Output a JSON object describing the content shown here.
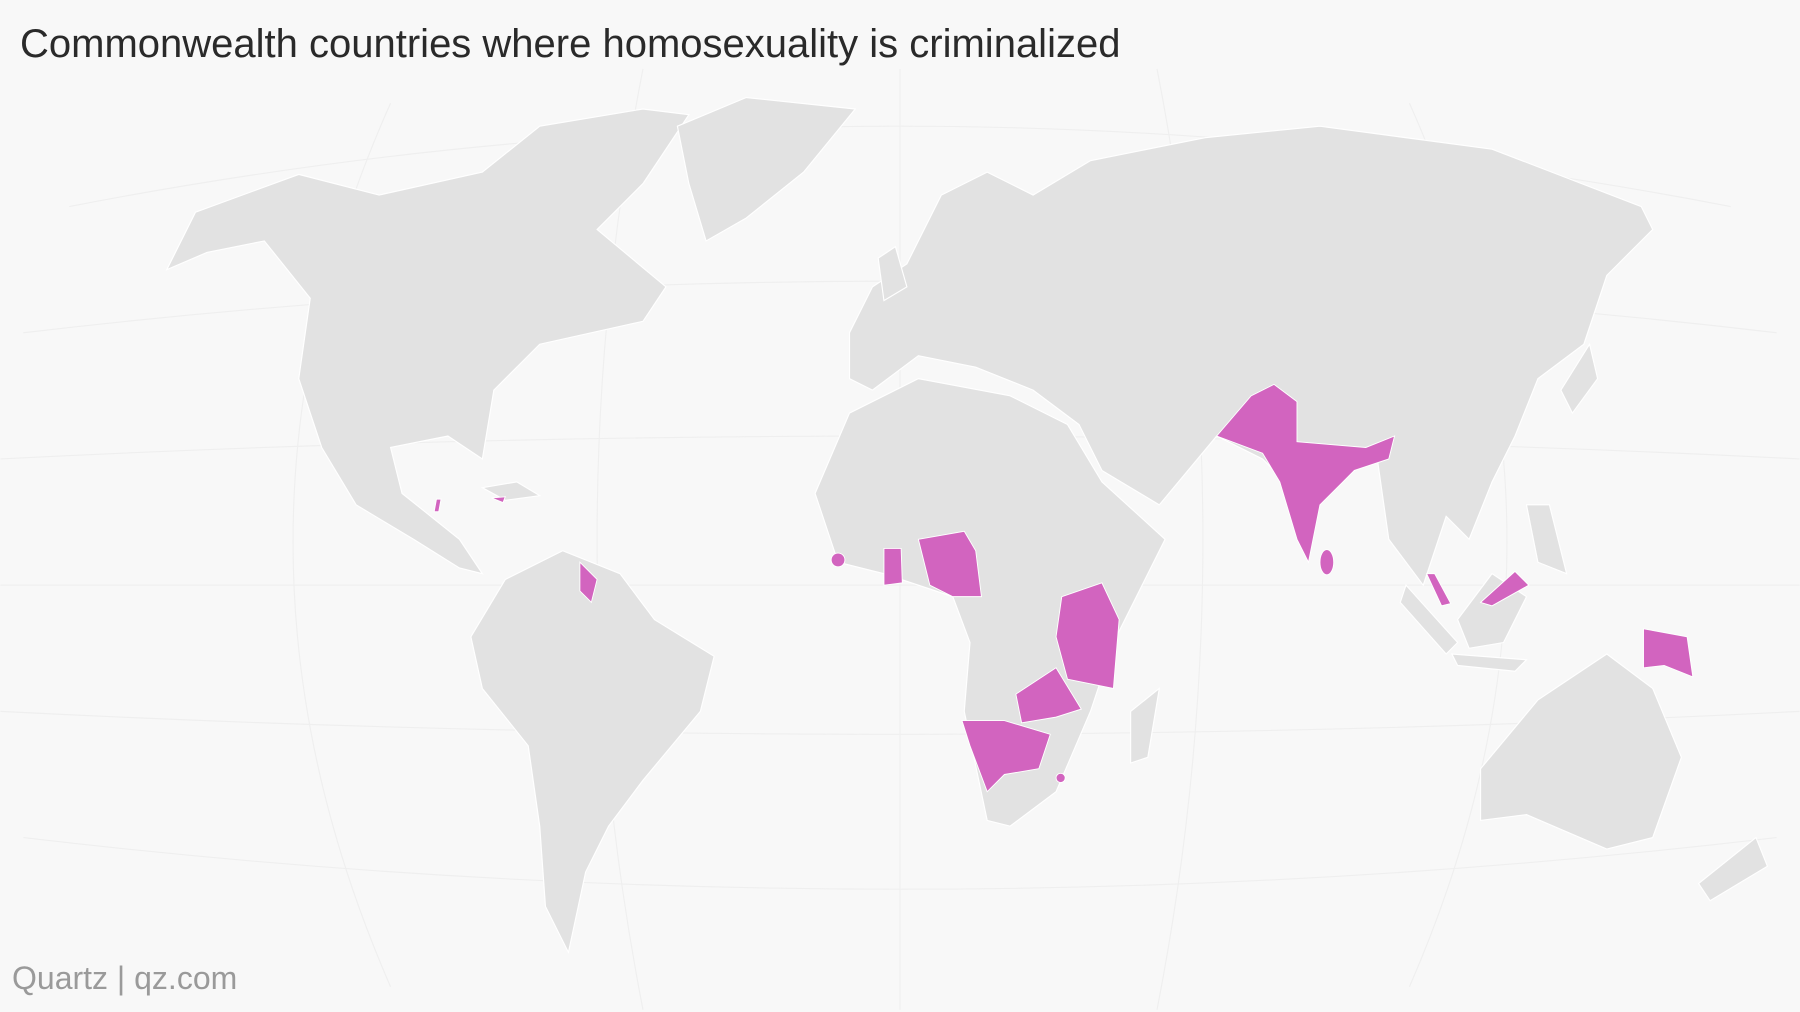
{
  "title": "Commonwealth countries where homosexuality is criminalized",
  "source": "Quartz | qz.com",
  "land_color": "#e2e2e2",
  "highlight_color": "#d264bf"
}
